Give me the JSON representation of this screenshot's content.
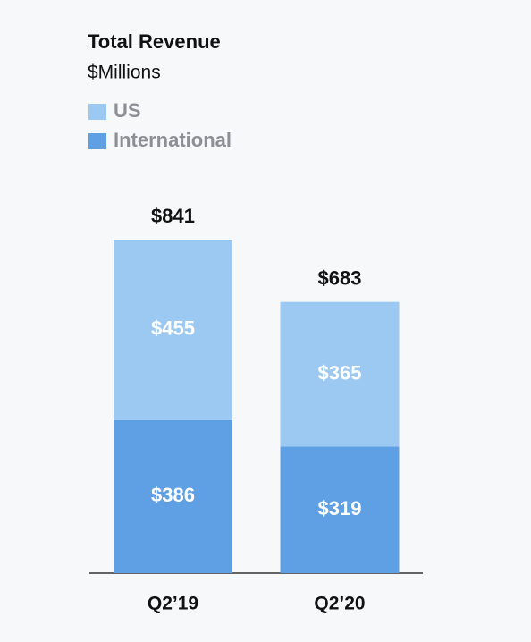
{
  "chart_data": {
    "type": "stacked-bar",
    "title": "Total Revenue",
    "subtitle": "$Millions",
    "categories": [
      "Q2’19",
      "Q2’20"
    ],
    "series": [
      {
        "name": "International",
        "color": "#5f9fe4",
        "values": [
          386,
          319
        ],
        "value_labels": [
          "$386",
          "$319"
        ]
      },
      {
        "name": "US",
        "color": "#9cc9f1",
        "values": [
          455,
          365
        ],
        "value_labels": [
          "$455",
          "$365"
        ]
      }
    ],
    "totals": [
      841,
      683
    ],
    "total_labels": [
      "$841",
      "$683"
    ]
  }
}
